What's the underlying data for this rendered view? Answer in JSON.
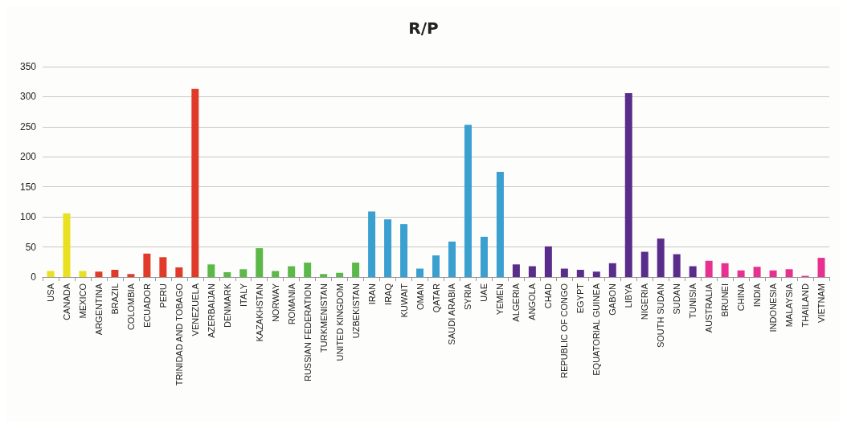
{
  "chart_data": {
    "type": "bar",
    "title": "R/P",
    "categories": [
      "USA",
      "CANADA",
      "MEXICO",
      "ARGENTINA",
      "BRAZIL",
      "COLOMBIA",
      "ECUADOR",
      "PERU",
      "TRINIDAD AND TOBAGO",
      "VENEZUELA",
      "AZERBAIJAN",
      "DENMARK",
      "ITALY",
      "KAZAKHSTAN",
      "NORWAY",
      "ROMANIA",
      "RUSSIAN FEDERATION",
      "TURKMENISTAN",
      "UNITED KINGDOM",
      "UZBEKISTAN",
      "IRAN",
      "IRAQ",
      "KUWAIT",
      "OMAN",
      "QATAR",
      "SAUDI ARABIA",
      "SYRIA",
      "UAE",
      "YEMEN",
      "ALGERIA",
      "ANGOLA",
      "CHAD",
      "REPUBLIC OF CONGO",
      "EGYPT",
      "EQUATORIAL GUINEA",
      "GABON",
      "LIBYA",
      "NIGERIA",
      "SOUTH SUDAN",
      "SUDAN",
      "TUNISIA",
      "AUSTRALIA",
      "BRUNEI",
      "CHINA",
      "INDIA",
      "INDONESIA",
      "MALAYSIA",
      "THAILAND",
      "VIETNAM"
    ],
    "values": [
      10,
      106,
      10,
      9,
      12,
      5,
      39,
      33,
      16,
      313,
      21,
      8,
      13,
      48,
      10,
      18,
      24,
      5,
      7,
      24,
      109,
      96,
      88,
      14,
      36,
      59,
      253,
      67,
      175,
      21,
      18,
      51,
      14,
      12,
      9,
      23,
      306,
      42,
      64,
      38,
      18,
      27,
      23,
      11,
      17,
      11,
      13,
      2,
      32
    ],
    "colors": [
      "#e8e020",
      "#e8e020",
      "#e8e020",
      "#e03a2a",
      "#e03a2a",
      "#e03a2a",
      "#e03a2a",
      "#e03a2a",
      "#e03a2a",
      "#e03a2a",
      "#5cb848",
      "#5cb848",
      "#5cb848",
      "#5cb848",
      "#5cb848",
      "#5cb848",
      "#5cb848",
      "#5cb848",
      "#5cb848",
      "#5cb848",
      "#3aa0d0",
      "#3aa0d0",
      "#3aa0d0",
      "#3aa0d0",
      "#3aa0d0",
      "#3aa0d0",
      "#3aa0d0",
      "#3aa0d0",
      "#3aa0d0",
      "#5a2d8c",
      "#5a2d8c",
      "#5a2d8c",
      "#5a2d8c",
      "#5a2d8c",
      "#5a2d8c",
      "#5a2d8c",
      "#5a2d8c",
      "#5a2d8c",
      "#5a2d8c",
      "#5a2d8c",
      "#5a2d8c",
      "#e83090",
      "#e83090",
      "#e83090",
      "#e83090",
      "#e83090",
      "#e83090",
      "#e83090",
      "#e83090"
    ],
    "ylim": [
      0,
      350
    ],
    "yticks": [
      0,
      50,
      100,
      150,
      200,
      250,
      300,
      350
    ],
    "grid": "y"
  }
}
